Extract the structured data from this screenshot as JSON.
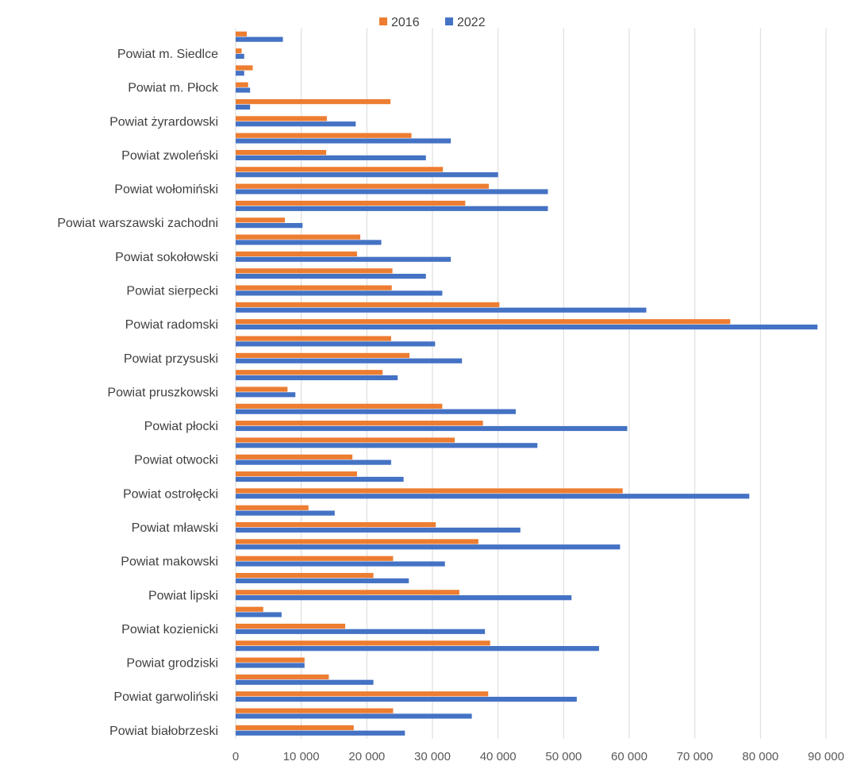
{
  "chart_data": {
    "type": "bar",
    "orientation": "horizontal",
    "legend_position": "top",
    "grid": true,
    "xlim": [
      0,
      90000
    ],
    "x_ticks": [
      "0",
      "10 000",
      "20 000",
      "30 000",
      "40 000",
      "50 000",
      "60 000",
      "70 000",
      "80 000",
      "90 000"
    ],
    "categories": [
      "Powiat białobrzeski",
      "",
      "Powiat garwoliński",
      "",
      "Powiat grodziski",
      "",
      "Powiat kozienicki",
      "",
      "Powiat lipski",
      "",
      "Powiat makowski",
      "",
      "Powiat mławski",
      "",
      "Powiat ostrołęcki",
      "",
      "Powiat otwocki",
      "",
      "Powiat płocki",
      "",
      "Powiat pruszkowski",
      "",
      "Powiat przysuski",
      "",
      "Powiat radomski",
      "",
      "Powiat sierpecki",
      "",
      "Powiat sokołowski",
      "",
      "Powiat warszawski zachodni",
      "",
      "Powiat wołomiński",
      "",
      "Powiat zwoleński",
      "",
      "Powiat żyrardowski",
      "",
      "Powiat m. Płock",
      "",
      "Powiat m. Siedlce",
      ""
    ],
    "series": [
      {
        "name": "2016",
        "color": "#ED7D31",
        "values": [
          18000,
          24000,
          38500,
          14200,
          10500,
          38800,
          16700,
          4200,
          34100,
          21000,
          24000,
          37000,
          30500,
          11100,
          59000,
          18500,
          17800,
          33400,
          37700,
          31500,
          7900,
          22400,
          26500,
          23700,
          75400,
          40200,
          23800,
          23900,
          18500,
          19000,
          7500,
          35000,
          38600,
          31600,
          13800,
          26800,
          13900,
          23600,
          1900,
          2600,
          900,
          1700
        ]
      },
      {
        "name": "2022",
        "color": "#4472C4",
        "values": [
          25800,
          36000,
          52000,
          21000,
          10500,
          55400,
          38000,
          7000,
          51200,
          26400,
          31900,
          58600,
          43400,
          15100,
          78300,
          25600,
          23700,
          46000,
          59700,
          42700,
          9100,
          24700,
          34500,
          30400,
          88700,
          62600,
          31500,
          29000,
          32800,
          22200,
          10200,
          47600,
          47600,
          40000,
          29000,
          32800,
          18300,
          2200,
          2200,
          1300,
          1300,
          7200
        ]
      }
    ]
  }
}
